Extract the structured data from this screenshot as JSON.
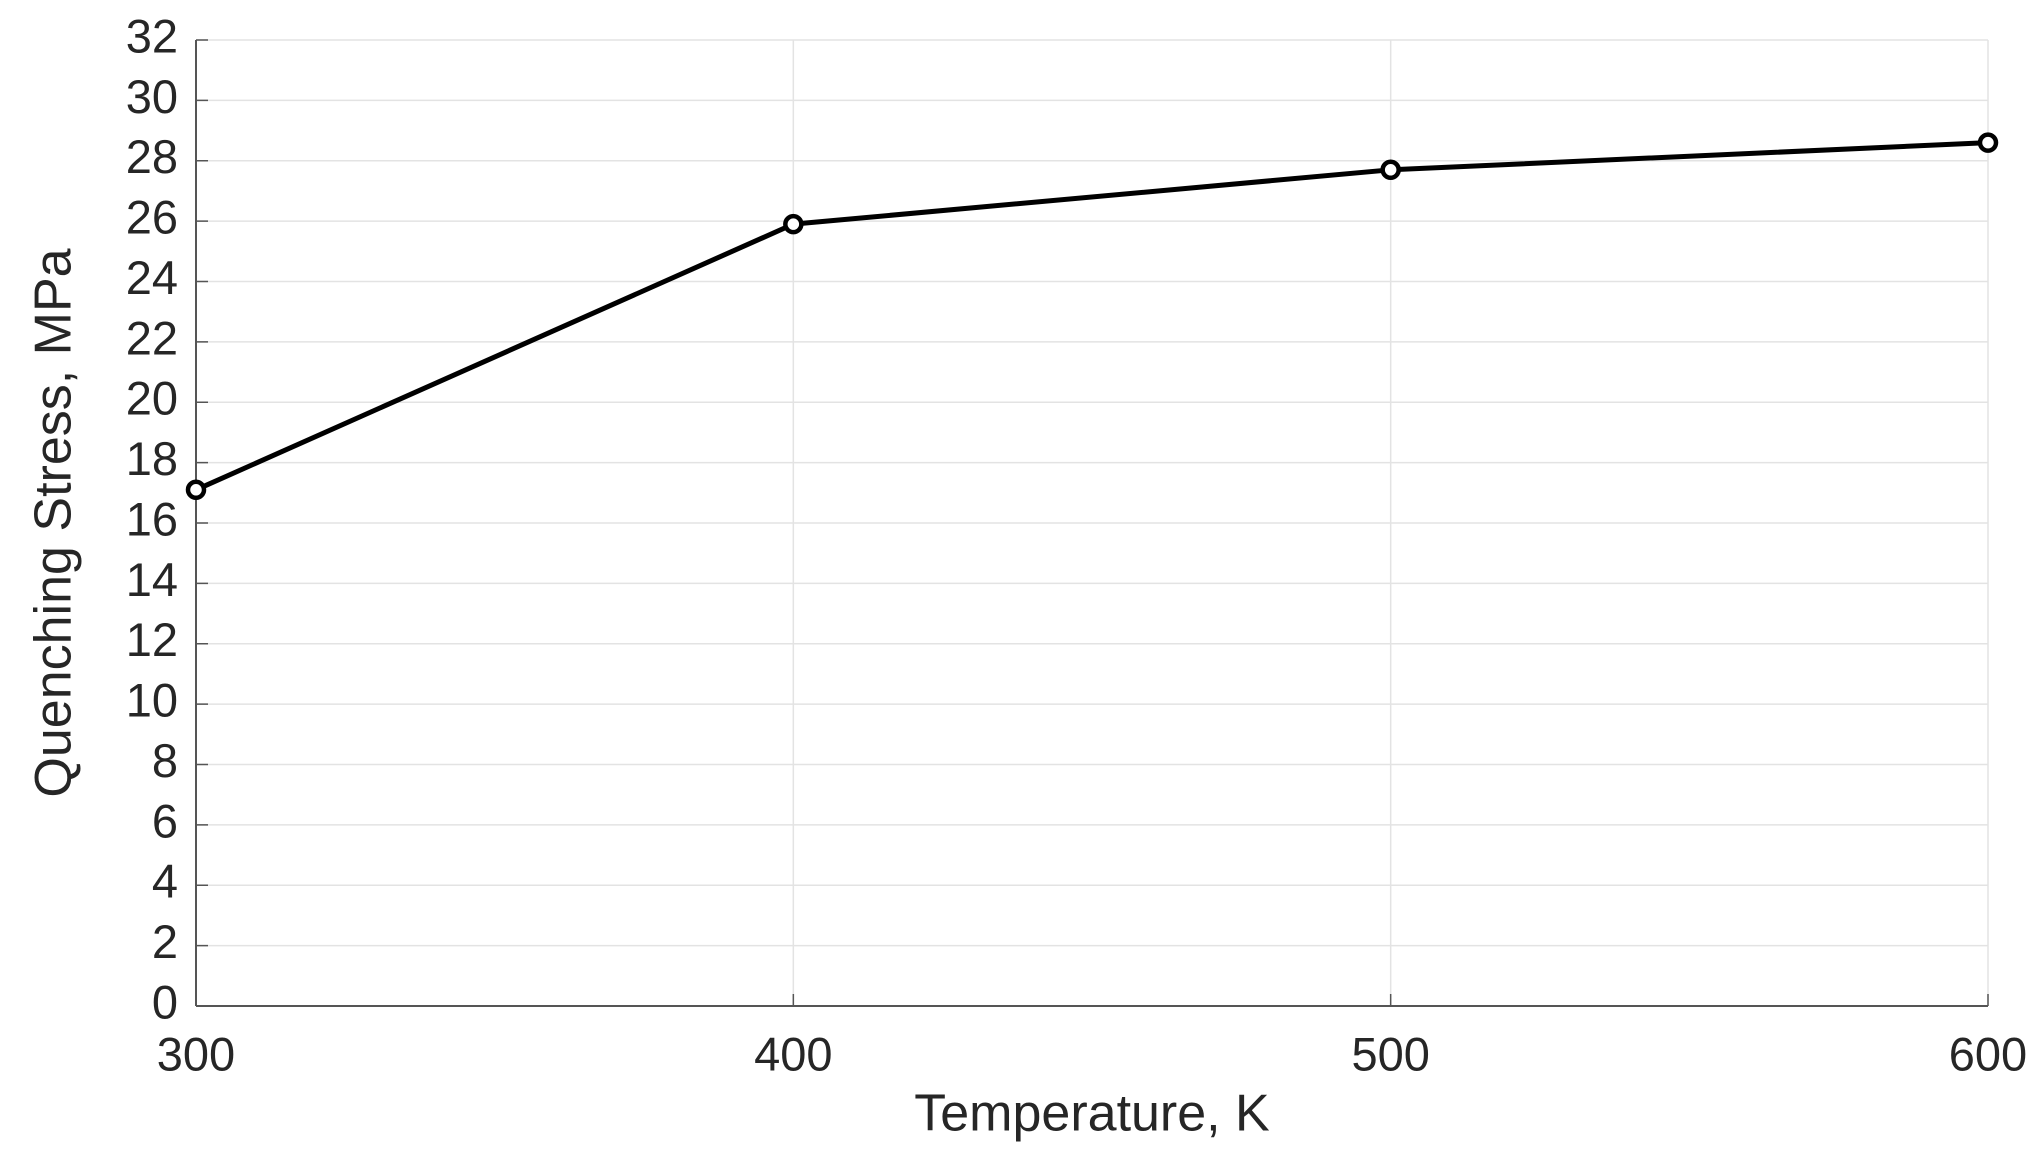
{
  "chart_data": {
    "type": "line",
    "xlabel": "Temperature, K",
    "ylabel": "Quenching Stress, MPa",
    "series": [
      {
        "x": [
          300,
          400,
          500,
          600
        ],
        "values": [
          17.1,
          25.9,
          27.7,
          28.6
        ],
        "color": "#000000",
        "marker": "circle"
      }
    ],
    "xlim": [
      300,
      600
    ],
    "xticks": [
      300,
      400,
      500,
      600
    ],
    "ylim": [
      0,
      32
    ],
    "yticks": [
      0,
      2,
      4,
      6,
      8,
      10,
      12,
      14,
      16,
      18,
      20,
      22,
      24,
      26,
      28,
      30,
      32
    ],
    "grid": true
  }
}
